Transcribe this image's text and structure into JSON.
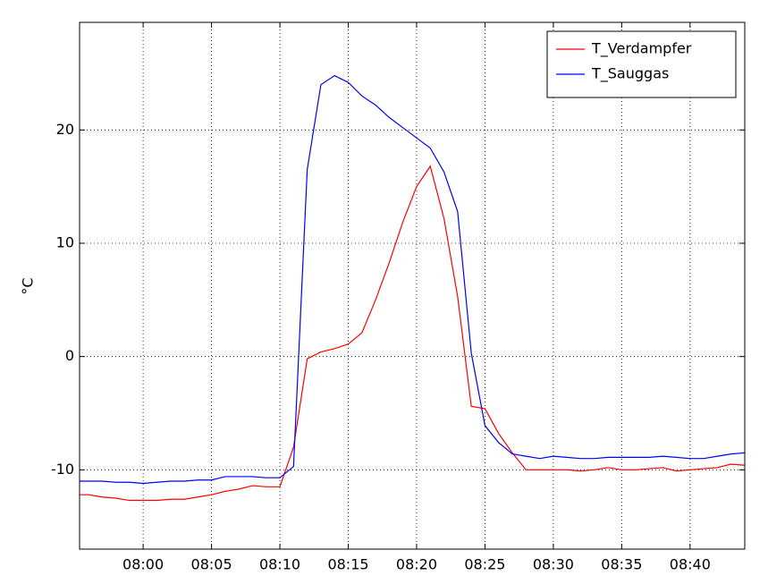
{
  "chart_data": {
    "type": "line",
    "ylabel": "°C",
    "x": [
      "07:55",
      "07:56",
      "07:57",
      "07:58",
      "07:59",
      "08:00",
      "08:01",
      "08:02",
      "08:03",
      "08:04",
      "08:05",
      "08:06",
      "08:07",
      "08:08",
      "08:09",
      "08:10",
      "08:11",
      "08:12",
      "08:13",
      "08:14",
      "08:15",
      "08:16",
      "08:17",
      "08:18",
      "08:19",
      "08:20",
      "08:21",
      "08:22",
      "08:23",
      "08:24",
      "08:25",
      "08:26",
      "08:27",
      "08:28",
      "08:29",
      "08:30",
      "08:31",
      "08:32",
      "08:33",
      "08:34",
      "08:35",
      "08:36",
      "08:37",
      "08:38",
      "08:39",
      "08:40",
      "08:41",
      "08:42",
      "08:43",
      "08:44"
    ],
    "series": [
      {
        "name": "T_Verdampfer",
        "color": "#ff0000",
        "values": [
          -12.2,
          -12.2,
          -12.4,
          -12.5,
          -12.7,
          -12.7,
          -12.7,
          -12.6,
          -12.6,
          -12.4,
          -12.2,
          -11.9,
          -11.7,
          -11.4,
          -11.5,
          -11.5,
          -8,
          -0.2,
          0.4,
          0.7,
          1.1,
          2.1,
          5,
          8.3,
          11.9,
          15,
          16.8,
          12.2,
          5.3,
          -4.4,
          -4.6,
          -6.8,
          -8.5,
          -10,
          -10,
          -10,
          -10,
          -10.1,
          -10,
          -9.8,
          -10,
          -10,
          -9.9,
          -9.8,
          -10.1,
          -10,
          -9.9,
          -9.8,
          -9.5,
          -9.6
        ]
      },
      {
        "name": "T_Sauggas",
        "color": "#0000ff",
        "values": [
          -11,
          -11,
          -11,
          -11.1,
          -11.1,
          -11.2,
          -11.1,
          -11,
          -11,
          -10.9,
          -10.9,
          -10.6,
          -10.6,
          -10.6,
          -10.7,
          -10.7,
          -9.7,
          16.5,
          24,
          24.8,
          24.2,
          23,
          22.2,
          21.1,
          20.2,
          19.3,
          18.4,
          16.3,
          12.8,
          0.3,
          -6.1,
          -7.6,
          -8.6,
          -8.8,
          -9,
          -8.8,
          -8.9,
          -9,
          -9,
          -8.9,
          -8.9,
          -8.9,
          -8.9,
          -8.8,
          -8.9,
          -9,
          -9,
          -8.8,
          -8.6,
          -8.5
        ]
      }
    ],
    "xlim": [
      "07:55:21",
      "08:44:00"
    ],
    "xticks": [
      "08:00",
      "08:05",
      "08:10",
      "08:15",
      "08:20",
      "08:25",
      "08:30",
      "08:35",
      "08:40"
    ],
    "ylim": [
      -17,
      29.5
    ],
    "yticks": [
      -10,
      0,
      10,
      20
    ],
    "grid": true,
    "legend": "upper right"
  }
}
